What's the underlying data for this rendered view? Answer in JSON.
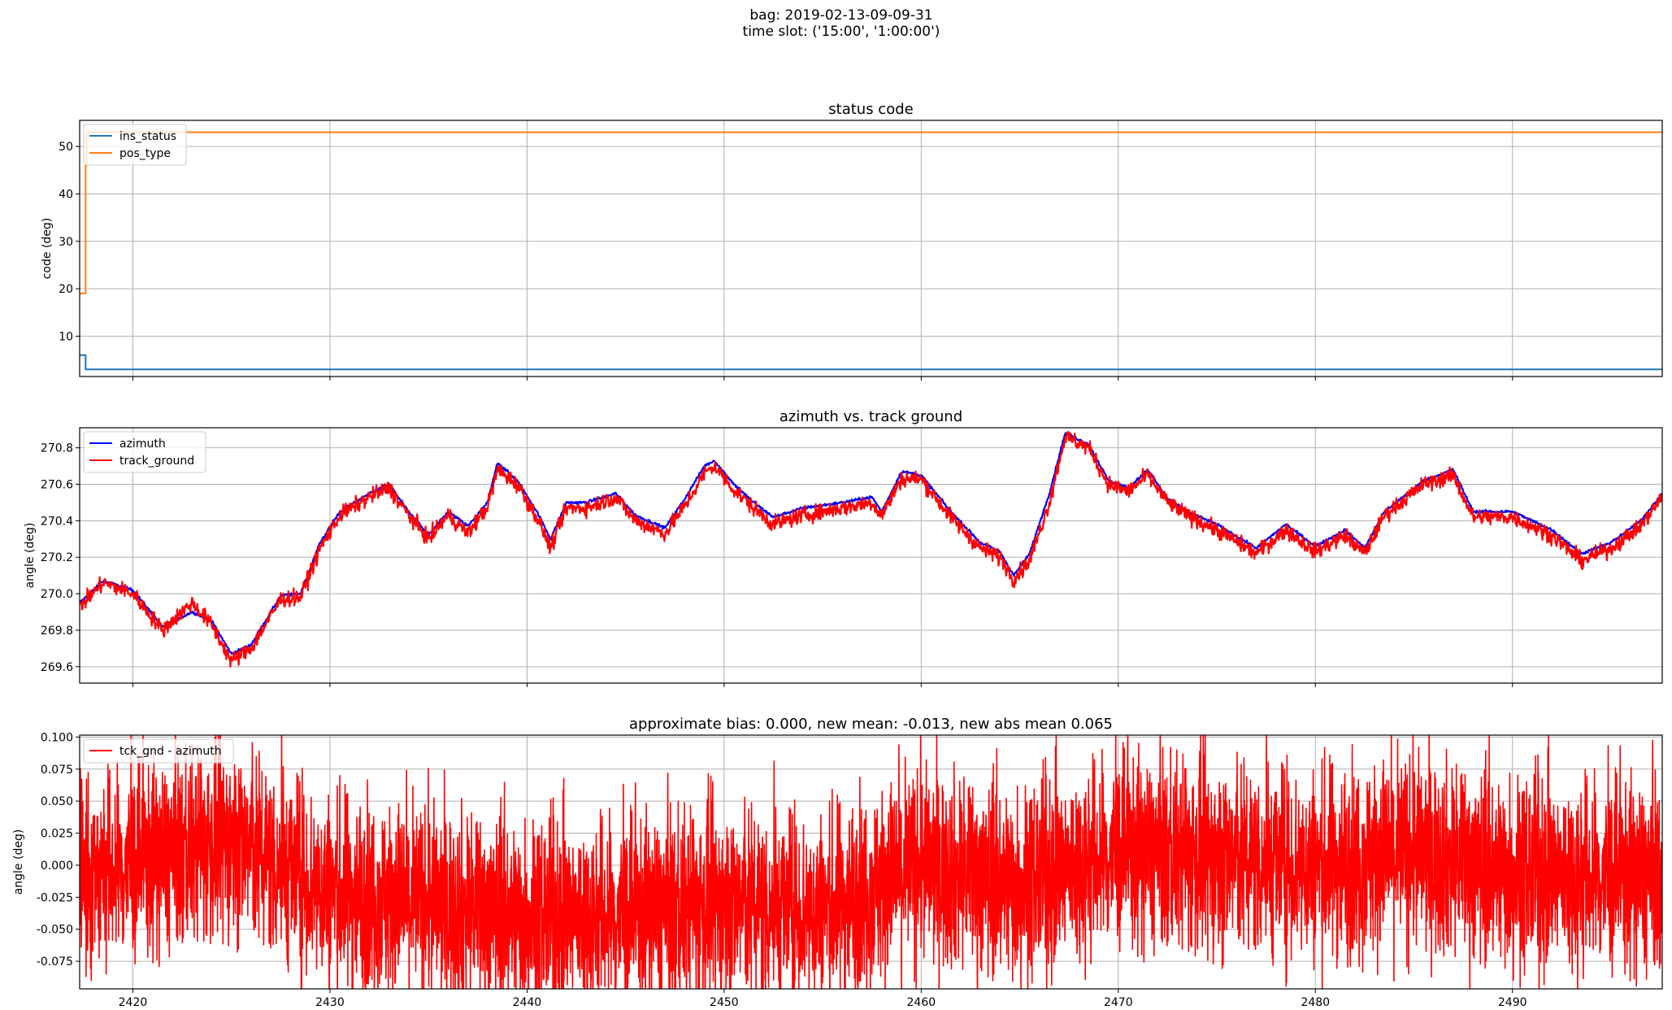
{
  "figure": {
    "suptitle_line1": "bag: 2019-02-13-09-09-31",
    "suptitle_line2": "time slot: ('15:00', '1:00:00')"
  },
  "chart_data": [
    {
      "type": "line",
      "title": "status code",
      "ylabel": "code (deg)",
      "xlabel": "",
      "xlim": [
        2417.3,
        2497.6
      ],
      "ylim": [
        1.5,
        55.5
      ],
      "xticks": [
        2420,
        2430,
        2440,
        2450,
        2460,
        2470,
        2480,
        2490
      ],
      "yticks": [
        10,
        20,
        30,
        40,
        50
      ],
      "grid": true,
      "legend": "upper left",
      "series": [
        {
          "name": "ins_status",
          "color": "#1f77b4",
          "x": [
            2417.3,
            2417.6,
            2417.6,
            2497.6
          ],
          "y": [
            6,
            6,
            3,
            3
          ]
        },
        {
          "name": "pos_type",
          "color": "#ff7f0e",
          "x": [
            2417.3,
            2417.6,
            2417.6,
            2417.65,
            2417.65,
            2497.6
          ],
          "y": [
            19,
            19,
            46,
            46,
            53,
            53
          ]
        }
      ]
    },
    {
      "type": "line",
      "title": "azimuth vs. track ground",
      "ylabel": "angle (deg)",
      "xlabel": "",
      "xlim": [
        2417.3,
        2497.6
      ],
      "ylim": [
        269.51,
        270.91
      ],
      "xticks": [
        2420,
        2430,
        2440,
        2450,
        2460,
        2470,
        2480,
        2490
      ],
      "yticks": [
        269.6,
        269.8,
        270.0,
        270.2,
        270.4,
        270.6,
        270.8
      ],
      "grid": true,
      "legend": "upper left",
      "series": [
        {
          "name": "azimuth",
          "color": "#0000ff",
          "x": [
            2417.3,
            2418.5,
            2420,
            2421.5,
            2423,
            2424,
            2425,
            2426,
            2427.5,
            2428.5,
            2429.5,
            2430.5,
            2432,
            2433,
            2434,
            2435,
            2436,
            2437,
            2438,
            2438.5,
            2439.5,
            2440.5,
            2441.2,
            2442,
            2443,
            2444.5,
            2445.5,
            2447,
            2448,
            2449,
            2449.5,
            2450.5,
            2451.5,
            2452.5,
            2454,
            2456,
            2457.5,
            2458,
            2459,
            2460,
            2461.5,
            2463,
            2464,
            2464.7,
            2465.5,
            2466.5,
            2467.3,
            2468.5,
            2469.5,
            2470.5,
            2471.5,
            2472.5,
            2473.5,
            2475,
            2477,
            2478.5,
            2480,
            2481.5,
            2482.5,
            2483.5,
            2485.5,
            2487,
            2488,
            2490,
            2492,
            2493.5,
            2495,
            2496.5,
            2497.6
          ],
          "y": [
            269.95,
            270.07,
            270.02,
            269.82,
            269.9,
            269.85,
            269.67,
            269.72,
            269.99,
            270.0,
            270.28,
            270.45,
            270.55,
            270.6,
            270.45,
            270.32,
            270.45,
            270.37,
            270.5,
            270.72,
            270.62,
            270.45,
            270.3,
            270.5,
            270.5,
            270.55,
            270.43,
            270.36,
            270.52,
            270.7,
            270.73,
            270.6,
            270.5,
            270.42,
            270.47,
            270.5,
            270.53,
            270.45,
            270.67,
            270.65,
            270.45,
            270.28,
            270.23,
            270.1,
            270.22,
            270.55,
            270.88,
            270.82,
            270.62,
            270.58,
            270.68,
            270.52,
            270.45,
            270.38,
            270.25,
            270.38,
            270.26,
            270.35,
            270.25,
            270.45,
            270.62,
            270.68,
            270.45,
            270.45,
            270.35,
            270.22,
            270.28,
            270.4,
            270.55
          ]
        },
        {
          "name": "track_ground",
          "color": "#ff0000",
          "x": [
            2417.3,
            2418.5,
            2420,
            2421.5,
            2423,
            2424,
            2425,
            2426,
            2427.5,
            2428.5,
            2429.5,
            2430.5,
            2432,
            2433,
            2434,
            2435,
            2436,
            2437,
            2438,
            2438.5,
            2439.5,
            2440.5,
            2441.2,
            2442,
            2443,
            2444.5,
            2445.5,
            2447,
            2448,
            2449,
            2449.5,
            2450.5,
            2451.5,
            2452.5,
            2454,
            2456,
            2457.5,
            2458,
            2459,
            2460,
            2461.5,
            2463,
            2464,
            2464.7,
            2465.5,
            2466.5,
            2467.3,
            2468.5,
            2469.5,
            2470.5,
            2471.5,
            2472.5,
            2473.5,
            2475,
            2477,
            2478.5,
            2480,
            2481.5,
            2482.5,
            2483.5,
            2485.5,
            2487,
            2488,
            2490,
            2492,
            2493.5,
            2495,
            2496.5,
            2497.6
          ],
          "y": [
            269.93,
            270.06,
            270.0,
            269.8,
            269.95,
            269.83,
            269.63,
            269.7,
            269.97,
            269.98,
            270.25,
            270.43,
            270.53,
            270.58,
            270.43,
            270.3,
            270.43,
            270.33,
            270.48,
            270.68,
            270.6,
            270.42,
            270.25,
            270.47,
            270.47,
            270.53,
            270.4,
            270.33,
            270.48,
            270.66,
            270.7,
            270.57,
            270.47,
            270.38,
            270.43,
            270.47,
            270.5,
            270.43,
            270.63,
            270.63,
            270.42,
            270.25,
            270.2,
            270.08,
            270.18,
            270.5,
            270.86,
            270.8,
            270.6,
            270.56,
            270.65,
            270.5,
            270.43,
            270.35,
            270.22,
            270.35,
            270.23,
            270.32,
            270.22,
            270.43,
            270.6,
            270.65,
            270.42,
            270.42,
            270.32,
            270.18,
            270.25,
            270.37,
            270.53
          ]
        }
      ]
    },
    {
      "type": "line",
      "title": "approximate bias: 0.000, new mean: -0.013, new abs mean 0.065",
      "ylabel": "angle (deg)",
      "xlabel": "",
      "xlim": [
        2417.3,
        2497.6
      ],
      "ylim": [
        -0.0965,
        0.1015
      ],
      "xticks": [
        2420,
        2430,
        2440,
        2450,
        2460,
        2470,
        2480,
        2490
      ],
      "yticks": [
        -0.075,
        -0.05,
        -0.025,
        0.0,
        0.025,
        0.05,
        0.075,
        0.1
      ],
      "grid": true,
      "legend": "upper left",
      "series": [
        {
          "name": "tck_gnd - azimuth",
          "color": "#ff0000",
          "mean": -0.013,
          "abs_mean": 0.065,
          "x": [
            2417.3,
            2420,
            2425,
            2430,
            2435,
            2440,
            2445,
            2450,
            2455,
            2460,
            2465,
            2470,
            2475,
            2480,
            2485,
            2490,
            2495,
            2497.6
          ],
          "y": [
            -0.01,
            0.0,
            0.02,
            -0.02,
            -0.03,
            -0.04,
            -0.04,
            -0.03,
            -0.035,
            0.0,
            -0.015,
            0.01,
            0.005,
            0.0,
            0.01,
            -0.005,
            -0.01,
            -0.01
          ]
        }
      ]
    }
  ]
}
